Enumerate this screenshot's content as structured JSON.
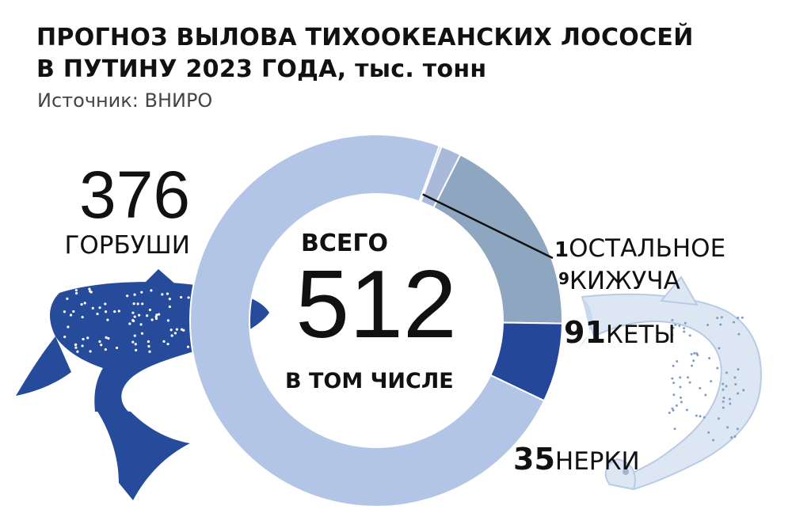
{
  "header": {
    "title_line1": "ПРОГНОЗ ВЫЛОВА ТИХООКЕАНСКИХ ЛОСОСЕЙ",
    "title_line2": "В ПУТИНУ 2023 ГОДА, тыс. тонн",
    "source": "Источник: ВНИРО"
  },
  "center": {
    "top_label": "ВСЕГО",
    "total": "512",
    "bottom_label": "В ТОМ ЧИСЛЕ"
  },
  "labels": {
    "gorbusha_value": "376",
    "gorbusha_name": "ГОРБУШИ",
    "other_value": "1",
    "other_name": "ОСТАЛЬНОЕ",
    "kizhuch_value": "9",
    "kizhuch_name": "КИЖУЧА",
    "keta_value": "91",
    "keta_name": "КЕТЫ",
    "nerka_value": "35",
    "nerka_name": "НЕРКИ"
  },
  "chart_data": {
    "type": "pie",
    "title": "ПРОГНОЗ ВЫЛОВА ТИХООКЕАНСКИХ ЛОСОСЕЙ В ПУТИНУ 2023 ГОДА, тыс. тонн",
    "total": 512,
    "slices": [
      {
        "name": "ГОРБУШИ",
        "value": 376,
        "color": "#b3c5e6"
      },
      {
        "name": "ОСТАЛЬНОЕ",
        "value": 1,
        "color": "#c6d3ec"
      },
      {
        "name": "КИЖУЧА",
        "value": 9,
        "color": "#a8b9d9"
      },
      {
        "name": "КЕТЫ",
        "value": 91,
        "color": "#8ea6bf"
      },
      {
        "name": "НЕРКИ",
        "value": 35,
        "color": "#25479a"
      }
    ]
  },
  "colors": {
    "dark_fish": "#254b9a",
    "light_fish": "#dbe6f4",
    "text": "#111111"
  },
  "icons": [
    "blue-salmon-illustration",
    "light-salmon-illustration"
  ]
}
